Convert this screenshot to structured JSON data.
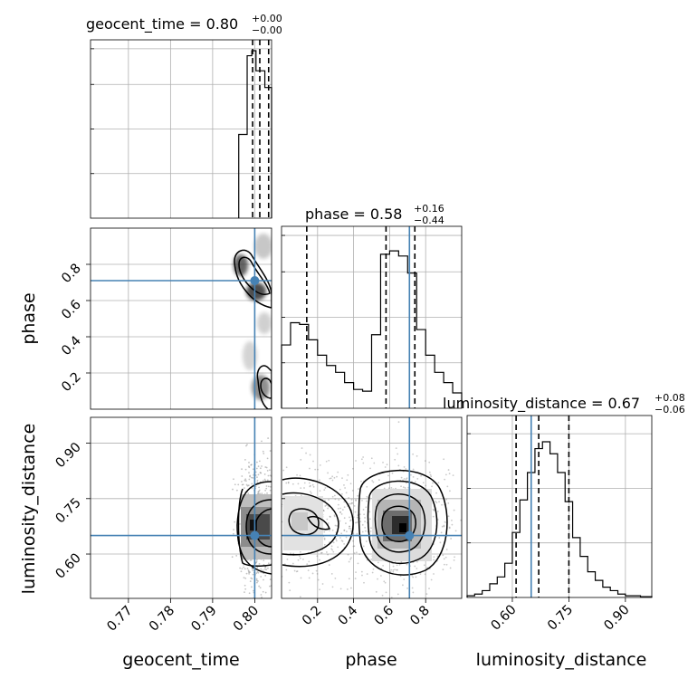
{
  "colors": {
    "truth": "#4682b4",
    "hist": "#000000",
    "scatter": "#808080"
  },
  "chart_data": {
    "type": "corner",
    "parameters": [
      "geocent_time",
      "phase",
      "luminosity_distance"
    ],
    "axis_labels": [
      "geocent_time",
      "phase",
      "luminosity_distance"
    ],
    "titles": [
      {
        "main": "geocent_time = 0.80",
        "sup": "+0.00",
        "sub": "−0.00"
      },
      {
        "main": "phase = 0.58",
        "sup": "+0.16",
        "sub": "−0.44"
      },
      {
        "main": "luminosity_distance = 0.67",
        "sup": "+0.08",
        "sub": "−0.06"
      }
    ],
    "ranges": [
      [
        0.761,
        0.804
      ],
      [
        0.0,
        1.0
      ],
      [
        0.48,
        0.97
      ]
    ],
    "ticks": [
      {
        "values": [
          0.77,
          0.78,
          0.79,
          0.8
        ],
        "labels": [
          "0.77",
          "0.78",
          "0.79",
          "0.80"
        ]
      },
      {
        "values": [
          0.2,
          0.4,
          0.6,
          0.8
        ],
        "labels": [
          "0.2",
          "0.4",
          "0.6",
          "0.8"
        ]
      },
      {
        "values": [
          0.6,
          0.75,
          0.9
        ],
        "labels": [
          "0.60",
          "0.75",
          "0.90"
        ]
      }
    ],
    "truths": [
      0.8,
      0.71,
      0.65
    ],
    "quantiles": [
      [
        0.7995,
        0.8012,
        0.8033
      ],
      [
        0.14,
        0.58,
        0.74
      ],
      [
        0.61,
        0.67,
        0.75
      ]
    ],
    "histograms": [
      {
        "edges": [
          0.7962,
          0.7982,
          0.7993,
          0.8003,
          0.8024,
          0.8043
        ],
        "counts": [
          0.5,
          0.97,
          1.0,
          0.88,
          0.78
        ]
      },
      {
        "edges": [
          0.0,
          0.05,
          0.1,
          0.15,
          0.2,
          0.25,
          0.3,
          0.35,
          0.4,
          0.45,
          0.5,
          0.55,
          0.6,
          0.65,
          0.7,
          0.75,
          0.8,
          0.85,
          0.9,
          0.95,
          1.0
        ],
        "counts": [
          0.37,
          0.5,
          0.49,
          0.4,
          0.31,
          0.25,
          0.21,
          0.15,
          0.11,
          0.1,
          0.43,
          0.9,
          0.92,
          0.89,
          0.79,
          0.46,
          0.31,
          0.21,
          0.15,
          0.09
        ]
      },
      {
        "edges": [
          0.48,
          0.5,
          0.52,
          0.54,
          0.56,
          0.58,
          0.6,
          0.62,
          0.64,
          0.66,
          0.68,
          0.7,
          0.72,
          0.74,
          0.76,
          0.78,
          0.8,
          0.82,
          0.84,
          0.86,
          0.88,
          0.9,
          0.92,
          0.94,
          0.97
        ],
        "counts": [
          0.01,
          0.02,
          0.04,
          0.08,
          0.12,
          0.2,
          0.38,
          0.57,
          0.73,
          0.87,
          0.91,
          0.84,
          0.73,
          0.56,
          0.35,
          0.24,
          0.15,
          0.1,
          0.06,
          0.04,
          0.02,
          0.01,
          0.01,
          0.005
        ]
      }
    ],
    "grid": true
  }
}
